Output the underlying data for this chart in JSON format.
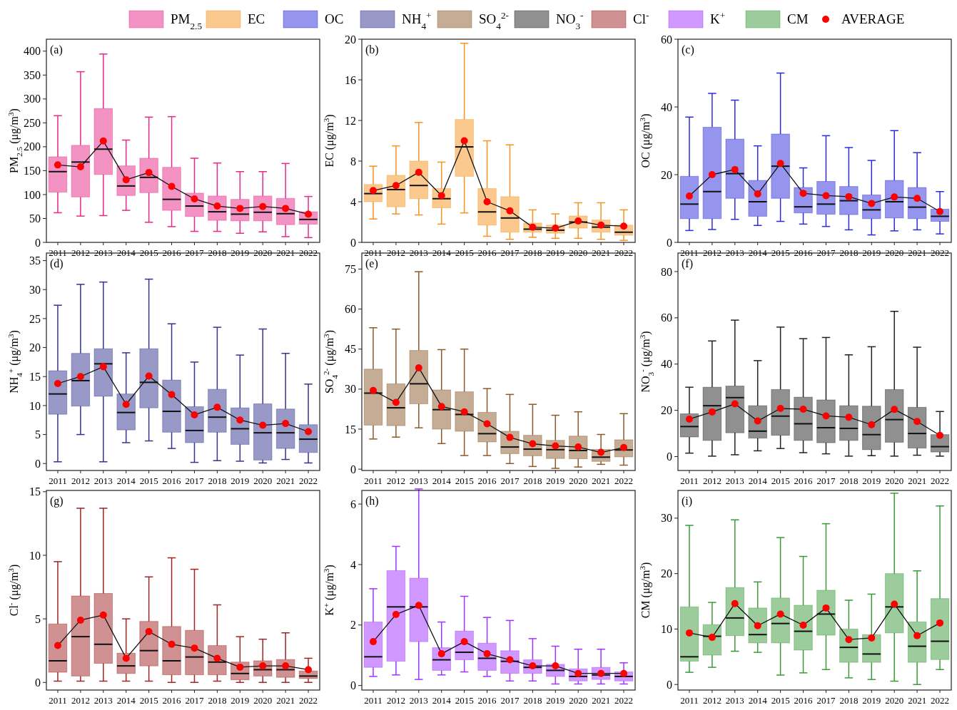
{
  "chart_data": [
    {
      "type": "box",
      "categories": [
        "2011",
        "2012",
        "2013",
        "2014",
        "2015",
        "2016",
        "2017",
        "2018",
        "2019",
        "2020",
        "2021",
        "2022"
      ],
      "ylabel": "PM$_{2.5}$ (μg/m$^{3}$)",
      "annotations": [
        "(a)"
      ],
      "ylim": [
        0,
        425
      ],
      "yticks": [
        0,
        50,
        100,
        150,
        200,
        250,
        300,
        350,
        400
      ],
      "legend": "top",
      "series": [
        {
          "name": "PM$_{2.5}$",
          "color": "#e8288a",
          "boxes": [
            {
              "low": 62,
              "q1": 105,
              "median": 148,
              "q3": 179,
              "high": 265
            },
            {
              "low": 55,
              "q1": 95,
              "median": 168,
              "q3": 203,
              "high": 357
            },
            {
              "low": 56,
              "q1": 142,
              "median": 195,
              "q3": 280,
              "high": 394
            },
            {
              "low": 67,
              "q1": 98,
              "median": 118,
              "q3": 160,
              "high": 214
            },
            {
              "low": 42,
              "q1": 104,
              "median": 136,
              "q3": 176,
              "high": 262
            },
            {
              "low": 33,
              "q1": 67,
              "median": 90,
              "q3": 157,
              "high": 263
            },
            {
              "low": 23,
              "q1": 54,
              "median": 76,
              "q3": 103,
              "high": 176
            },
            {
              "low": 23,
              "q1": 46,
              "median": 64,
              "q3": 97,
              "high": 166
            },
            {
              "low": 19,
              "q1": 45,
              "median": 59,
              "q3": 90,
              "high": 148
            },
            {
              "low": 22,
              "q1": 45,
              "median": 63,
              "q3": 97,
              "high": 148
            },
            {
              "low": 12,
              "q1": 37,
              "median": 60,
              "q3": 92,
              "high": 165
            },
            {
              "low": 10,
              "q1": 38,
              "median": 48,
              "q3": 64,
              "high": 96
            }
          ]
        },
        {
          "name": "AVERAGE",
          "type": "line",
          "color": "#ff0000",
          "marker": "circle",
          "values": [
            162,
            158,
            212,
            131,
            146,
            117,
            91,
            76,
            71,
            75,
            71,
            59
          ]
        }
      ]
    },
    {
      "type": "box",
      "categories": [
        "2011",
        "2012",
        "2013",
        "2014",
        "2015",
        "2016",
        "2017",
        "2018",
        "2019",
        "2020",
        "2021",
        "2022"
      ],
      "ylabel": "EC (μg/m$^{3}$)",
      "annotations": [
        "(b)"
      ],
      "ylim": [
        0,
        20
      ],
      "yticks": [
        0,
        4,
        8,
        12,
        16,
        20
      ],
      "legend": "top",
      "series": [
        {
          "name": "EC",
          "color": "#f7931e",
          "boxes": [
            {
              "low": 2.3,
              "q1": 4.0,
              "median": 4.8,
              "q3": 5.7,
              "high": 7.5
            },
            {
              "low": 2.8,
              "q1": 3.5,
              "median": 5.2,
              "q3": 6.6,
              "high": 9.5
            },
            {
              "low": 2.7,
              "q1": 4.3,
              "median": 5.6,
              "q3": 8.0,
              "high": 11.8
            },
            {
              "low": 1.8,
              "q1": 3.4,
              "median": 4.3,
              "q3": 5.3,
              "high": 7.9
            },
            {
              "low": 2.9,
              "q1": 6.5,
              "median": 9.4,
              "q3": 12.1,
              "high": 19.6
            },
            {
              "low": 0.6,
              "q1": 1.7,
              "median": 3.0,
              "q3": 5.3,
              "high": 10.0
            },
            {
              "low": 0.3,
              "q1": 1.0,
              "median": 2.4,
              "q3": 4.5,
              "high": 9.6
            },
            {
              "low": 0.5,
              "q1": 1.0,
              "median": 1.3,
              "q3": 1.9,
              "high": 3.2
            },
            {
              "low": 0.4,
              "q1": 0.9,
              "median": 1.2,
              "q3": 1.7,
              "high": 2.8
            },
            {
              "low": 0.4,
              "q1": 1.4,
              "median": 2.0,
              "q3": 2.6,
              "high": 3.9
            },
            {
              "low": 0.3,
              "q1": 1.0,
              "median": 1.5,
              "q3": 2.2,
              "high": 3.9
            },
            {
              "low": 0.2,
              "q1": 0.7,
              "median": 1.0,
              "q3": 1.7,
              "high": 3.2
            }
          ]
        },
        {
          "type": "line",
          "color": "#ff0000",
          "marker": "circle",
          "values": [
            5.1,
            5.6,
            6.9,
            4.6,
            10.0,
            4.0,
            3.1,
            1.5,
            1.4,
            2.1,
            1.7,
            1.6
          ]
        }
      ]
    },
    {
      "type": "box",
      "categories": [
        "2011",
        "2012",
        "2013",
        "2014",
        "2015",
        "2016",
        "2017",
        "2018",
        "2019",
        "2020",
        "2021",
        "2022"
      ],
      "ylabel": "OC (μg/m$^{3}$)",
      "annotations": [
        "(c)"
      ],
      "ylim": [
        0,
        60
      ],
      "yticks": [
        0,
        20,
        40,
        60
      ],
      "legend": "top",
      "series": [
        {
          "name": "OC",
          "color": "#2b2bdd",
          "boxes": [
            {
              "low": 3.5,
              "q1": 7,
              "median": 11.3,
              "q3": 19.5,
              "high": 37
            },
            {
              "low": 3.8,
              "q1": 7,
              "median": 15,
              "q3": 34,
              "high": 44
            },
            {
              "low": 6.8,
              "q1": 13,
              "median": 20.3,
              "q3": 30.5,
              "high": 42
            },
            {
              "low": 5,
              "q1": 7.7,
              "median": 12,
              "q3": 18.3,
              "high": 28.5
            },
            {
              "low": 6.2,
              "q1": 13,
              "median": 22.5,
              "q3": 32,
              "high": 50
            },
            {
              "low": 5.4,
              "q1": 8.7,
              "median": 10.5,
              "q3": 16.2,
              "high": 22
            },
            {
              "low": 4.7,
              "q1": 8.3,
              "median": 11.3,
              "q3": 18,
              "high": 31.5
            },
            {
              "low": 3.7,
              "q1": 8.2,
              "median": 12.3,
              "q3": 16.5,
              "high": 28
            },
            {
              "low": 2.2,
              "q1": 7,
              "median": 9.6,
              "q3": 14,
              "high": 24.2
            },
            {
              "low": 3.4,
              "q1": 7.2,
              "median": 12,
              "q3": 18.3,
              "high": 33
            },
            {
              "low": 3.7,
              "q1": 7,
              "median": 10.4,
              "q3": 16.2,
              "high": 26.5
            },
            {
              "low": 2.5,
              "q1": 6.2,
              "median": 7.7,
              "q3": 9.8,
              "high": 15
            }
          ]
        },
        {
          "type": "line",
          "color": "#ff0000",
          "marker": "circle",
          "values": [
            13.7,
            20,
            21.5,
            14.3,
            23.3,
            14.5,
            13.8,
            13.5,
            11.5,
            13.4,
            13,
            9.1
          ]
        }
      ]
    },
    {
      "type": "box",
      "categories": [
        "2011",
        "2012",
        "2013",
        "2014",
        "2015",
        "2016",
        "2017",
        "2018",
        "2019",
        "2020",
        "2021",
        "2022"
      ],
      "ylabel": "NH$_{4}$$^{+}$ (μg/m$^{3}$)",
      "annotations": [
        "(d)"
      ],
      "ylim": [
        -1.2,
        36.3
      ],
      "yticks": [
        0,
        5,
        10,
        15,
        20,
        25,
        30,
        35
      ],
      "legend": "top",
      "series": [
        {
          "name": "NH$_{4}$$^{+}$",
          "color": "#34348f",
          "boxes": [
            {
              "low": 0.3,
              "q1": 8.5,
              "median": 12,
              "q3": 16,
              "high": 27.3
            },
            {
              "low": 5,
              "q1": 9.9,
              "median": 14.3,
              "q3": 19,
              "high": 30.9
            },
            {
              "low": 0.3,
              "q1": 11.6,
              "median": 17.2,
              "q3": 19.8,
              "high": 31.3
            },
            {
              "low": 3.6,
              "q1": 5.8,
              "median": 8.8,
              "q3": 12,
              "high": 19.1
            },
            {
              "low": 3.9,
              "q1": 9.6,
              "median": 14,
              "q3": 19.8,
              "high": 31.8
            },
            {
              "low": 2.6,
              "q1": 5.4,
              "median": 9,
              "q3": 14.4,
              "high": 24.1
            },
            {
              "low": 0.2,
              "q1": 3.6,
              "median": 5.7,
              "q3": 9.8,
              "high": 17.5
            },
            {
              "low": 0.5,
              "q1": 5.4,
              "median": 8,
              "q3": 12.8,
              "high": 23.5
            },
            {
              "low": 0.4,
              "q1": 3.3,
              "median": 6,
              "q3": 9.6,
              "high": 18.7
            },
            {
              "low": 0.1,
              "q1": 0.6,
              "median": 5.3,
              "q3": 10.3,
              "high": 23.2
            },
            {
              "low": 0.7,
              "q1": 2.6,
              "median": 5.3,
              "q3": 9.4,
              "high": 19
            },
            {
              "low": 0.1,
              "q1": 1.9,
              "median": 4.2,
              "q3": 6.7,
              "high": 13.7
            }
          ]
        },
        {
          "type": "line",
          "color": "#ff0000",
          "marker": "circle",
          "values": [
            13.8,
            15,
            16.7,
            10.2,
            15.1,
            11.9,
            8.4,
            9.7,
            7.5,
            6.6,
            6.9,
            5.5
          ]
        }
      ]
    },
    {
      "type": "box",
      "categories": [
        "2011",
        "2012",
        "2013",
        "2014",
        "2015",
        "2016",
        "2017",
        "2018",
        "2019",
        "2020",
        "2021",
        "2022"
      ],
      "ylabel": "SO$_{4}$$^{2-}$ (μg/m$^{3}$)",
      "annotations": [
        "(e)"
      ],
      "ylim": [
        -0.5,
        81
      ],
      "yticks": [
        0,
        15,
        30,
        45,
        60,
        75
      ],
      "legend": "top",
      "series": [
        {
          "name": "SO$_{4}$$^{2-}$",
          "color": "#8b5a2b",
          "boxes": [
            {
              "low": 11.3,
              "q1": 16.5,
              "median": 28.5,
              "q3": 37.5,
              "high": 53
            },
            {
              "low": 12,
              "q1": 16.3,
              "median": 23,
              "q3": 32,
              "high": 52.5
            },
            {
              "low": 15.5,
              "q1": 24.5,
              "median": 32,
              "q3": 44.5,
              "high": 74
            },
            {
              "low": 9.6,
              "q1": 15,
              "median": 22.3,
              "q3": 29.7,
              "high": 44.8
            },
            {
              "low": 5.1,
              "q1": 14.2,
              "median": 20.5,
              "q3": 29,
              "high": 45
            },
            {
              "low": 5.1,
              "q1": 10.2,
              "median": 13.3,
              "q3": 21.3,
              "high": 30.2
            },
            {
              "low": 2.1,
              "q1": 5.8,
              "median": 8.3,
              "q3": 14.2,
              "high": 28
            },
            {
              "low": 1,
              "q1": 5,
              "median": 7.5,
              "q3": 12.7,
              "high": 24.3
            },
            {
              "low": 0.3,
              "q1": 4,
              "median": 7.3,
              "q3": 10.8,
              "high": 20.2
            },
            {
              "low": 0.8,
              "q1": 3.9,
              "median": 7,
              "q3": 12.4,
              "high": 21.5
            },
            {
              "low": 1.8,
              "q1": 2.9,
              "median": 4.5,
              "q3": 7.4,
              "high": 13
            },
            {
              "low": 1.5,
              "q1": 4.6,
              "median": 7.2,
              "q3": 11,
              "high": 20.8
            }
          ]
        },
        {
          "type": "line",
          "color": "#ff0000",
          "marker": "circle",
          "values": [
            29.5,
            25,
            38,
            23.5,
            21.5,
            17,
            11.9,
            9.5,
            8.7,
            8.3,
            6.3,
            8.1
          ]
        }
      ]
    },
    {
      "type": "box",
      "categories": [
        "2011",
        "2012",
        "2013",
        "2014",
        "2015",
        "2016",
        "2017",
        "2018",
        "2019",
        "2020",
        "2021",
        "2022"
      ],
      "ylabel": "NO$_{3}$$^{-}$ (μg/m$^{3}$)",
      "annotations": [
        "(f)"
      ],
      "ylim": [
        -6,
        88
      ],
      "yticks": [
        0,
        20,
        40,
        60,
        80
      ],
      "legend": "top",
      "series": [
        {
          "name": "NO$_{3}$$^{-}$",
          "color": "#222222",
          "boxes": [
            {
              "low": 1.5,
              "q1": 8.5,
              "median": 13,
              "q3": 18.5,
              "high": 30
            },
            {
              "low": 0.2,
              "q1": 7,
              "median": 22,
              "q3": 30,
              "high": 50
            },
            {
              "low": 0.8,
              "q1": 10.3,
              "median": 25.5,
              "q3": 30.5,
              "high": 59
            },
            {
              "low": 2.5,
              "q1": 8,
              "median": 11,
              "q3": 22,
              "high": 41.5
            },
            {
              "low": 3.5,
              "q1": 9.2,
              "median": 17.5,
              "q3": 29,
              "high": 56
            },
            {
              "low": 1.7,
              "q1": 7,
              "median": 14.2,
              "q3": 25.7,
              "high": 51
            },
            {
              "low": 1.2,
              "q1": 6,
              "median": 12.5,
              "q3": 24.5,
              "high": 51.5
            },
            {
              "low": 0.2,
              "q1": 7,
              "median": 12.2,
              "q3": 22,
              "high": 44
            },
            {
              "low": 0.4,
              "q1": 3,
              "median": 9.5,
              "q3": 21.8,
              "high": 47.5
            },
            {
              "low": 0.2,
              "q1": 6.2,
              "median": 16,
              "q3": 29,
              "high": 62.8
            },
            {
              "low": 0.6,
              "q1": 3.7,
              "median": 10,
              "q3": 21.3,
              "high": 47.3
            },
            {
              "low": 0.2,
              "q1": 2,
              "median": 4.3,
              "q3": 9.5,
              "high": 19.5
            }
          ]
        },
        {
          "type": "line",
          "color": "#ff0000",
          "marker": "circle",
          "values": [
            16.2,
            19.3,
            22.8,
            15.4,
            20.8,
            20.5,
            17.6,
            17,
            13.8,
            20.4,
            15.2,
            9.2
          ]
        }
      ]
    },
    {
      "type": "box",
      "categories": [
        "2011",
        "2012",
        "2013",
        "2014",
        "2015",
        "2016",
        "2017",
        "2018",
        "2019",
        "2020",
        "2021",
        "2022"
      ],
      "ylabel": "Cl$^{-}$ (μg/m$^{3}$)",
      "annotations": [
        "(g)"
      ],
      "ylim": [
        -0.6,
        15.1
      ],
      "yticks": [
        0,
        5,
        10,
        15
      ],
      "legend": "top",
      "series": [
        {
          "name": "Cl$^{-}$",
          "color": "#a02424",
          "boxes": [
            {
              "low": 0.1,
              "q1": 0.8,
              "median": 1.7,
              "q3": 4.6,
              "high": 9.5
            },
            {
              "low": 0.1,
              "q1": 0.5,
              "median": 3.6,
              "q3": 6.8,
              "high": 13.7
            },
            {
              "low": 0.1,
              "q1": 1.5,
              "median": 3,
              "q3": 7,
              "high": 13.7
            },
            {
              "low": 0.1,
              "q1": 0.7,
              "median": 1.3,
              "q3": 2.3,
              "high": 5
            },
            {
              "low": 0.1,
              "q1": 1.3,
              "median": 2.5,
              "q3": 4.8,
              "high": 8.3
            },
            {
              "low": 0,
              "q1": 0.6,
              "median": 1.7,
              "q3": 4.4,
              "high": 9.8
            },
            {
              "low": 0,
              "q1": 0.6,
              "median": 2,
              "q3": 4.1,
              "high": 8.9
            },
            {
              "low": 0.1,
              "q1": 0.6,
              "median": 1.6,
              "q3": 2.9,
              "high": 6.1
            },
            {
              "low": 0,
              "q1": 0.2,
              "median": 0.7,
              "q3": 1.6,
              "high": 3.6
            },
            {
              "low": 0,
              "q1": 0.5,
              "median": 1,
              "q3": 1.7,
              "high": 3.4
            },
            {
              "low": 0,
              "q1": 0.4,
              "median": 1,
              "q3": 1.8,
              "high": 3.9
            },
            {
              "low": 0,
              "q1": 0.3,
              "median": 0.5,
              "q3": 0.9,
              "high": 1.9
            }
          ]
        },
        {
          "type": "line",
          "color": "#ff0000",
          "marker": "circle",
          "values": [
            2.9,
            4.9,
            5.3,
            1.9,
            4,
            3,
            2.7,
            1.9,
            1.2,
            1.3,
            1.3,
            1
          ]
        }
      ]
    },
    {
      "type": "box",
      "categories": [
        "2011",
        "2012",
        "2013",
        "2014",
        "2015",
        "2016",
        "2017",
        "2018",
        "2019",
        "2020",
        "2021",
        "2022"
      ],
      "ylabel": "K$^{+}$ (μg/m$^{3}$)",
      "annotations": [
        "(h)"
      ],
      "ylim": [
        -0.15,
        6.45
      ],
      "yticks": [
        0,
        2,
        4,
        6
      ],
      "legend": "top",
      "series": [
        {
          "name": "K$^{+}$",
          "color": "#a033ff",
          "boxes": [
            {
              "low": 0.3,
              "q1": 0.6,
              "median": 0.95,
              "q3": 2.1,
              "high": 3.2
            },
            {
              "low": 0.35,
              "q1": 0.8,
              "median": 2.6,
              "q3": 3.8,
              "high": 4.6
            },
            {
              "low": 0.2,
              "q1": 1.45,
              "median": 2.6,
              "q3": 3.55,
              "high": 6.5
            },
            {
              "low": 0.35,
              "q1": 0.5,
              "median": 0.85,
              "q3": 1.25,
              "high": 2.1
            },
            {
              "low": 0.45,
              "q1": 0.85,
              "median": 1.1,
              "q3": 1.8,
              "high": 2.95
            },
            {
              "low": 0.3,
              "q1": 0.5,
              "median": 0.9,
              "q3": 1.4,
              "high": 2.25
            },
            {
              "low": 0.15,
              "q1": 0.4,
              "median": 0.8,
              "q3": 1.15,
              "high": 2.15
            },
            {
              "low": 0.15,
              "q1": 0.4,
              "median": 0.6,
              "q3": 0.85,
              "high": 1.55
            },
            {
              "low": 0.05,
              "q1": 0.3,
              "median": 0.5,
              "q3": 0.7,
              "high": 1.3
            },
            {
              "low": 0.05,
              "q1": 0.15,
              "median": 0.3,
              "q3": 0.55,
              "high": 1.2
            },
            {
              "low": 0.05,
              "q1": 0.2,
              "median": 0.35,
              "q3": 0.6,
              "high": 1.2
            },
            {
              "low": 0.05,
              "q1": 0.15,
              "median": 0.3,
              "q3": 0.45,
              "high": 0.75
            }
          ]
        },
        {
          "type": "line",
          "color": "#ff0000",
          "marker": "circle",
          "values": [
            1.45,
            2.35,
            2.65,
            1.05,
            1.45,
            1.05,
            0.85,
            0.65,
            0.65,
            0.4,
            0.4,
            0.4
          ]
        }
      ]
    },
    {
      "type": "box",
      "categories": [
        "2011",
        "2012",
        "2013",
        "2014",
        "2015",
        "2016",
        "2017",
        "2018",
        "2019",
        "2020",
        "2021",
        "2022"
      ],
      "ylabel": "CM (μg/m$^{3}$)",
      "annotations": [
        "(i)"
      ],
      "ylim": [
        -1,
        35
      ],
      "yticks": [
        0,
        10,
        20,
        30
      ],
      "legend": "top",
      "series": [
        {
          "name": "CM",
          "color": "#3a9a3a",
          "boxes": [
            {
              "low": 2.2,
              "q1": 4.2,
              "median": 5,
              "q3": 14,
              "high": 28.7
            },
            {
              "low": 3.1,
              "q1": 5.3,
              "median": 8.7,
              "q3": 10.8,
              "high": 14.8
            },
            {
              "low": 6,
              "q1": 8.8,
              "median": 12,
              "q3": 17.5,
              "high": 29.7
            },
            {
              "low": 5.8,
              "q1": 7.5,
              "median": 9,
              "q3": 13.8,
              "high": 18.5
            },
            {
              "low": 1.7,
              "q1": 7.5,
              "median": 11,
              "q3": 15.6,
              "high": 26.5
            },
            {
              "low": 2.1,
              "q1": 6.2,
              "median": 9.6,
              "q3": 14.3,
              "high": 23.1
            },
            {
              "low": 2.7,
              "q1": 8.9,
              "median": 12.7,
              "q3": 17,
              "high": 29
            },
            {
              "low": 1.2,
              "q1": 4,
              "median": 6.7,
              "q3": 10,
              "high": 15.2
            },
            {
              "low": 0.9,
              "q1": 4,
              "median": 5.5,
              "q3": 9,
              "high": 16.3
            },
            {
              "low": 0.6,
              "q1": 9.3,
              "median": 14,
              "q3": 20,
              "high": 34.5
            },
            {
              "low": 0,
              "q1": 4,
              "median": 6.9,
              "q3": 11.3,
              "high": 20.5
            },
            {
              "low": 2.7,
              "q1": 4.5,
              "median": 7.8,
              "q3": 15.5,
              "high": 32.2
            }
          ]
        },
        {
          "type": "line",
          "color": "#ff0000",
          "marker": "circle",
          "values": [
            9.3,
            8.5,
            14.6,
            10.6,
            12.7,
            10.7,
            13.8,
            8.1,
            8.4,
            14.5,
            8.8,
            11.1
          ]
        }
      ]
    }
  ]
}
